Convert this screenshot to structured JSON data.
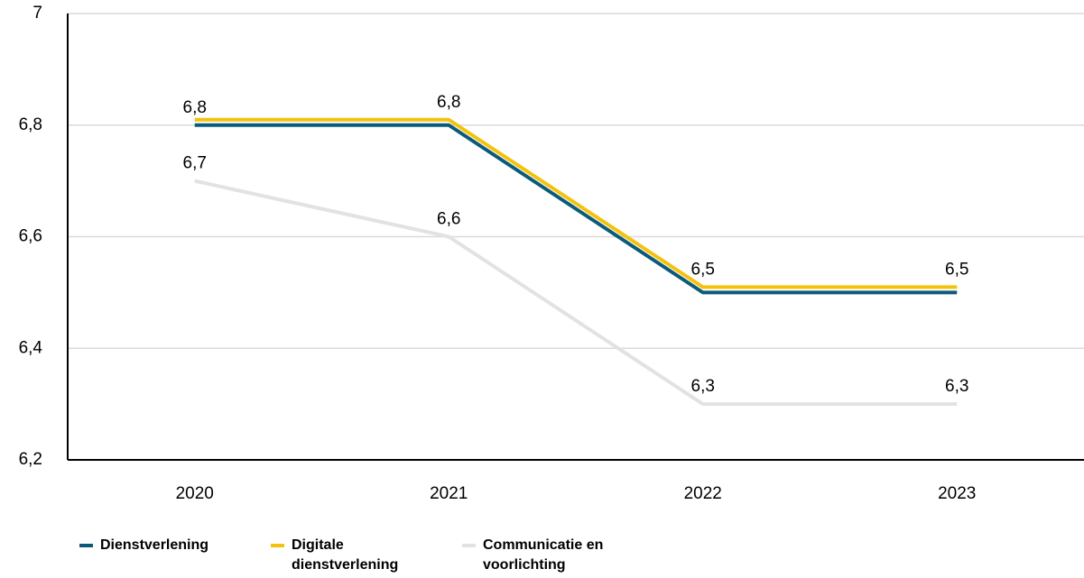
{
  "chart_data": {
    "type": "line",
    "categories": [
      "2020",
      "2021",
      "2022",
      "2023"
    ],
    "ylim": [
      6.2,
      7
    ],
    "yticks": [
      "6,2",
      "6,4",
      "6,6",
      "6,8",
      "7"
    ],
    "ytick_values": [
      6.2,
      6.4,
      6.6,
      6.8,
      7
    ],
    "grid": true,
    "legend_position": "bottom-left",
    "series": [
      {
        "name": "Dienstverlening",
        "color": "#0c5a7a",
        "values": [
          6.8,
          6.8,
          6.5,
          6.5
        ],
        "labels": [
          "6,8",
          "",
          "",
          ""
        ]
      },
      {
        "name": "Digitale dienstverlening",
        "color": "#f4c20d",
        "values": [
          6.8,
          6.8,
          6.5,
          6.5
        ],
        "labels": [
          "",
          "6,8",
          "6,5",
          "6,5"
        ]
      },
      {
        "name": "Communicatie en voorlichting",
        "color": "#e2e2e2",
        "values": [
          6.7,
          6.6,
          6.3,
          6.3
        ],
        "labels": [
          "6,7",
          "6,6",
          "6,3",
          "6,3"
        ]
      }
    ]
  },
  "legend": {
    "items": [
      {
        "lines": [
          "Dienstverlening"
        ],
        "color": "#0c5a7a"
      },
      {
        "lines": [
          "Digitale",
          "dienstverlening"
        ],
        "color": "#f4c20d"
      },
      {
        "lines": [
          "Communicatie en",
          "voorlichting"
        ],
        "color": "#e2e2e2"
      }
    ]
  }
}
